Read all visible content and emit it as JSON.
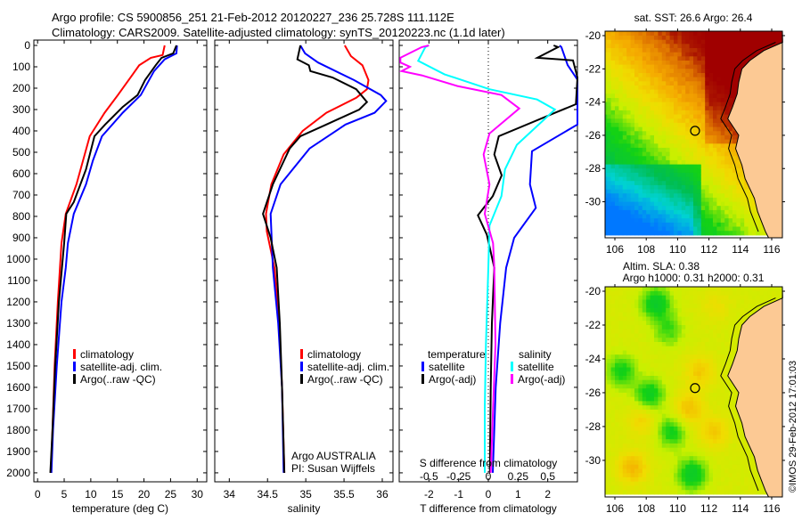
{
  "title": {
    "line1": "Argo profile: CS 5900856_251 21-Feb-2012 20120227_236 25.728S 111.112E",
    "line2": "Climatology: CARS2009. Satellite-adjusted climatology: synTS_20120223.nc (1.1d later)"
  },
  "colors": {
    "climatology": "#ff0000",
    "satellite": "#0000ff",
    "argo": "#000000",
    "sal_satellite": "#00ffff",
    "sal_argo": "#ff00ff"
  },
  "chart_data": [
    {
      "type": "line",
      "name": "temperature",
      "xlabel": "temperature (deg C)",
      "ylabel": "depth",
      "xlim": [
        -0.7,
        31.8
      ],
      "ylim": [
        2042,
        -25
      ],
      "xticks": [
        0,
        5,
        10,
        15,
        20,
        25,
        30
      ],
      "yticks": [
        0,
        100,
        200,
        300,
        400,
        500,
        600,
        700,
        800,
        900,
        1000,
        1100,
        1200,
        1300,
        1400,
        1500,
        1600,
        1700,
        1800,
        1900,
        2000
      ],
      "legend": [
        "climatology",
        "satellite-adj. clim.",
        "Argo(..raw -QC)"
      ],
      "series": [
        {
          "name": "climatology",
          "color": "#ff0000",
          "depth": [
            0,
            45,
            58,
            93,
            135,
            232,
            315,
            425,
            650,
            788,
            925,
            1200,
            1500,
            1800,
            2000
          ],
          "values": [
            23.9,
            23.5,
            21.3,
            19.1,
            17.9,
            15.1,
            12.6,
            9.8,
            7.3,
            5.3,
            4.5,
            3.8,
            3.2,
            2.8,
            2.5
          ]
        },
        {
          "name": "satellite-adj. clim.",
          "color": "#0000ff",
          "depth": [
            0,
            37,
            65,
            120,
            232,
            315,
            425,
            538,
            650,
            788,
            925,
            1040,
            1200,
            1500,
            1800,
            2000
          ],
          "values": [
            26.2,
            26.1,
            23.9,
            21.9,
            19.4,
            16.0,
            12.1,
            10.4,
            9.1,
            6.8,
            5.7,
            5.3,
            4.5,
            3.6,
            2.9,
            2.6
          ]
        },
        {
          "name": "Argo(..raw -QC)",
          "color": "#000000",
          "depth": [
            0,
            37,
            58,
            93,
            162,
            232,
            288,
            370,
            425,
            580,
            733,
            788,
            925,
            1200,
            1500,
            1800,
            2000
          ],
          "values": [
            26.1,
            25.5,
            23.3,
            22.2,
            20.2,
            18.8,
            16.0,
            12.7,
            10.7,
            9.1,
            6.8,
            5.4,
            5.0,
            4.0,
            3.3,
            2.8,
            2.4
          ]
        }
      ]
    },
    {
      "type": "line",
      "name": "salinity",
      "xlabel": "salinity",
      "xlim": [
        33.81,
        36.14
      ],
      "ylim": [
        2042,
        -25
      ],
      "xticks": [
        34,
        34.5,
        35,
        35.5,
        36
      ],
      "legend": [
        "climatology",
        "satellite-adj. clim.",
        "Argo(..raw -QC)"
      ],
      "annotation": [
        "Argo AUSTRALIA",
        "PI: Susan Wijffels"
      ],
      "series": [
        {
          "name": "climatology",
          "color": "#ff0000",
          "depth": [
            0,
            50,
            93,
            162,
            205,
            245,
            315,
            400,
            510,
            650,
            788,
            870,
            1040,
            1300,
            1600,
            2000
          ],
          "values": [
            35.51,
            35.59,
            35.74,
            35.82,
            35.8,
            35.66,
            35.27,
            34.96,
            34.71,
            34.55,
            34.48,
            34.49,
            34.59,
            34.65,
            34.69,
            34.72
          ]
        },
        {
          "name": "satellite-adj. clim.",
          "color": "#0000ff",
          "depth": [
            0,
            37,
            80,
            162,
            232,
            260,
            315,
            370,
            482,
            650,
            788,
            1040,
            1300,
            1600,
            2000
          ],
          "values": [
            34.93,
            34.99,
            35.16,
            35.63,
            35.98,
            36.05,
            35.9,
            35.52,
            35.05,
            34.67,
            34.54,
            34.57,
            34.64,
            34.69,
            34.71
          ]
        },
        {
          "name": "Argo(..raw -QC)",
          "color": "#000000",
          "depth": [
            0,
            65,
            93,
            120,
            150,
            205,
            265,
            300,
            370,
            425,
            482,
            650,
            788,
            900,
            1040,
            1300,
            1600,
            2000
          ],
          "values": [
            34.93,
            34.89,
            35.04,
            35.06,
            35.35,
            35.66,
            35.8,
            35.7,
            35.27,
            34.93,
            34.79,
            34.57,
            34.44,
            34.54,
            34.62,
            34.66,
            34.69,
            34.72
          ]
        }
      ]
    },
    {
      "type": "line",
      "name": "difference",
      "xlabel": "T difference from climatology",
      "xlabel2": "S difference from climatology",
      "xlim": [
        -3.0,
        3.0
      ],
      "x2lim": [
        -0.75,
        0.75
      ],
      "ylim": [
        2042,
        -25
      ],
      "xticks": [
        -2,
        -1,
        0,
        1,
        2
      ],
      "x2ticks": [
        -0.5,
        -0.25,
        0,
        0.25,
        0.5
      ],
      "legend": {
        "temperature_heading": "temperature",
        "salinity_heading": "salinity",
        "entries": [
          "satellite",
          "Argo(-adj)",
          "satellite",
          "Argo(-adj)"
        ]
      },
      "series": [
        {
          "name": "T satellite",
          "axis": "T",
          "color": "#0000ff",
          "depth": [
            0,
            8,
            92,
            160,
            370,
            495,
            650,
            760,
            900,
            1040,
            1300,
            1600,
            2000
          ],
          "values": [
            2.4,
            2.46,
            2.67,
            3.0,
            3.0,
            1.47,
            1.4,
            1.6,
            0.87,
            0.6,
            0.4,
            0.25,
            0.15
          ]
        },
        {
          "name": "T Argo(-adj)",
          "axis": "T",
          "color": "#000000",
          "depth": [
            0,
            8,
            58,
            70,
            150,
            275,
            315,
            425,
            510,
            608,
            705,
            795,
            885,
            1040,
            1300,
            1600,
            2000
          ],
          "values": [
            2.2,
            2.35,
            1.65,
            2.85,
            3.0,
            2.95,
            2.25,
            0.35,
            0.2,
            0.45,
            0.15,
            -0.35,
            -0.05,
            0.2,
            0.12,
            0.08,
            0.05
          ]
        },
        {
          "name": "S satellite",
          "axis": "S",
          "color": "#00ffff",
          "depth": [
            0,
            8,
            72,
            135,
            205,
            253,
            300,
            465,
            580,
            705,
            843,
            1040,
            1400,
            1700,
            2000
          ],
          "values": [
            -0.5,
            -0.53,
            -0.59,
            -0.37,
            0.01,
            0.41,
            0.56,
            0.24,
            0.14,
            0.11,
            0.01,
            0.0,
            -0.02,
            -0.03,
            -0.03
          ]
        },
        {
          "name": "S Argo(-adj)",
          "axis": "S",
          "color": "#ff00ff",
          "depth": [
            0,
            8,
            58,
            80,
            100,
            120,
            140,
            190,
            232,
            295,
            412,
            510,
            650,
            788,
            925,
            1040,
            1400,
            1700,
            2000
          ],
          "values": [
            -0.5,
            -0.56,
            -0.74,
            -0.74,
            -0.66,
            -0.73,
            -0.56,
            -0.26,
            0.11,
            0.26,
            0.01,
            -0.04,
            0.01,
            -0.03,
            0.04,
            0.05,
            0.06,
            0.04,
            0.02
          ]
        }
      ]
    }
  ],
  "maps": {
    "sst": {
      "title": "sat. SST: 26.6 Argo: 26.4",
      "lat_ticks": [
        "-20",
        "-22",
        "-24",
        "-26",
        "-28",
        "-30"
      ],
      "lon_ticks": [
        "106",
        "108",
        "110",
        "112",
        "114",
        "116"
      ],
      "argo_position": {
        "lon": 111.112,
        "lat": -25.728
      }
    },
    "sla": {
      "title1": "Altim. SLA: 0.38",
      "title2": "Argo h1000: 0.31 h2000: 0.31",
      "lat_ticks": [
        "-20",
        "-22",
        "-24",
        "-26",
        "-28",
        "-30"
      ],
      "lon_ticks": [
        "106",
        "108",
        "110",
        "112",
        "114",
        "116"
      ],
      "argo_position": {
        "lon": 111.112,
        "lat": -25.728
      }
    }
  },
  "credit": "©IMOS 29-Feb-2012 17:01:03"
}
